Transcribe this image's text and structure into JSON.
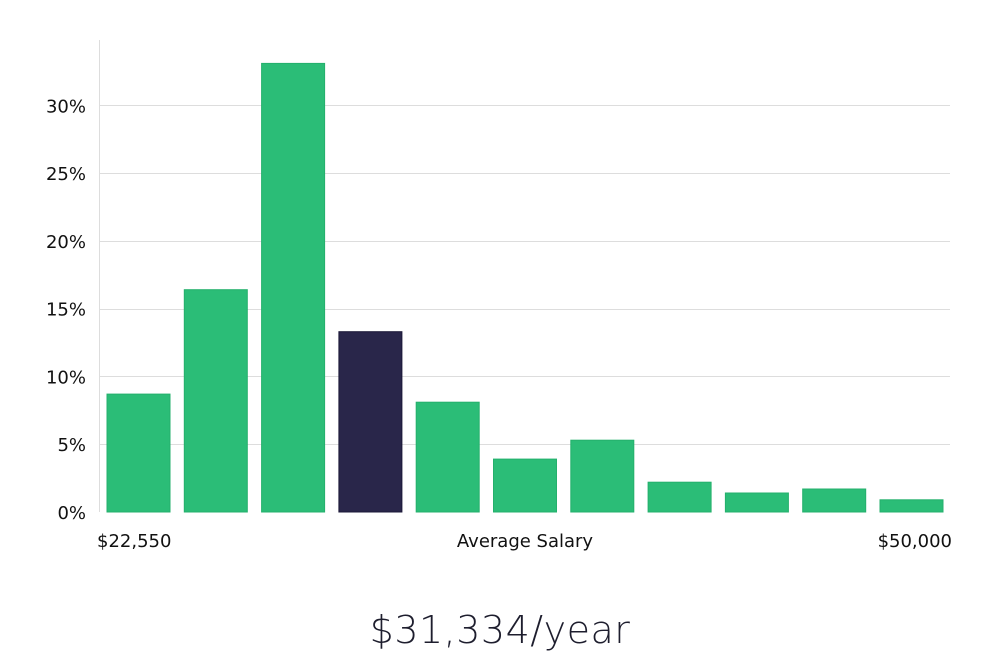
{
  "chart_data": {
    "type": "bar",
    "title": "",
    "ylabel": "",
    "xlabel": "Average Salary",
    "ylim": [
      0,
      0.35
    ],
    "y_ticks": [
      0,
      0.05,
      0.1,
      0.15,
      0.2,
      0.25,
      0.3
    ],
    "y_tick_labels": [
      "0%",
      "5%",
      "10%",
      "15%",
      "20%",
      "25%",
      "30%"
    ],
    "x_range_labels": {
      "min": "$22,550",
      "max": "$50,000"
    },
    "grid": true,
    "values": [
      0.087,
      0.164,
      0.331,
      0.133,
      0.081,
      0.039,
      0.053,
      0.022,
      0.014,
      0.017,
      0.009
    ],
    "highlight_index": 3,
    "colors": {
      "bar": "#2bbd77",
      "highlight": "#29264a",
      "grid": "#dddddd",
      "text": "#111111"
    }
  },
  "summary": {
    "salary_text": "$31,334/year"
  }
}
